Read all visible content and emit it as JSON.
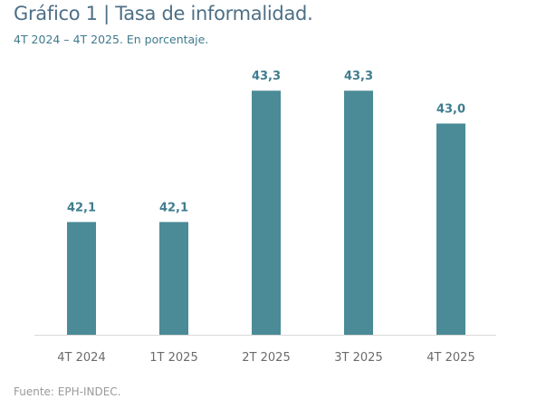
{
  "title": "Gráfico 1 | Tasa de informalidad.",
  "subtitle": "4T 2024 – 4T 2025. En porcentaje.",
  "source": "Fuente: EPH-INDEC.",
  "chart_data": {
    "type": "bar",
    "categories": [
      "4T 2024",
      "1T 2025",
      "2T 2025",
      "3T 2025",
      "4T 2025"
    ],
    "values": [
      42.1,
      42.1,
      43.3,
      43.3,
      43.0
    ],
    "data_labels": [
      "42,1",
      "42,1",
      "43,3",
      "43,3",
      "43,0"
    ],
    "title": "Gráfico 1 | Tasa de informalidad.",
    "subtitle": "4T 2024 – 4T 2025. En porcentaje.",
    "xlabel": "",
    "ylabel": "",
    "ylim": [
      41.07,
      43.55
    ],
    "grid": false,
    "bar_color": "#4a8b97",
    "label_color": "#3f7d8e"
  }
}
